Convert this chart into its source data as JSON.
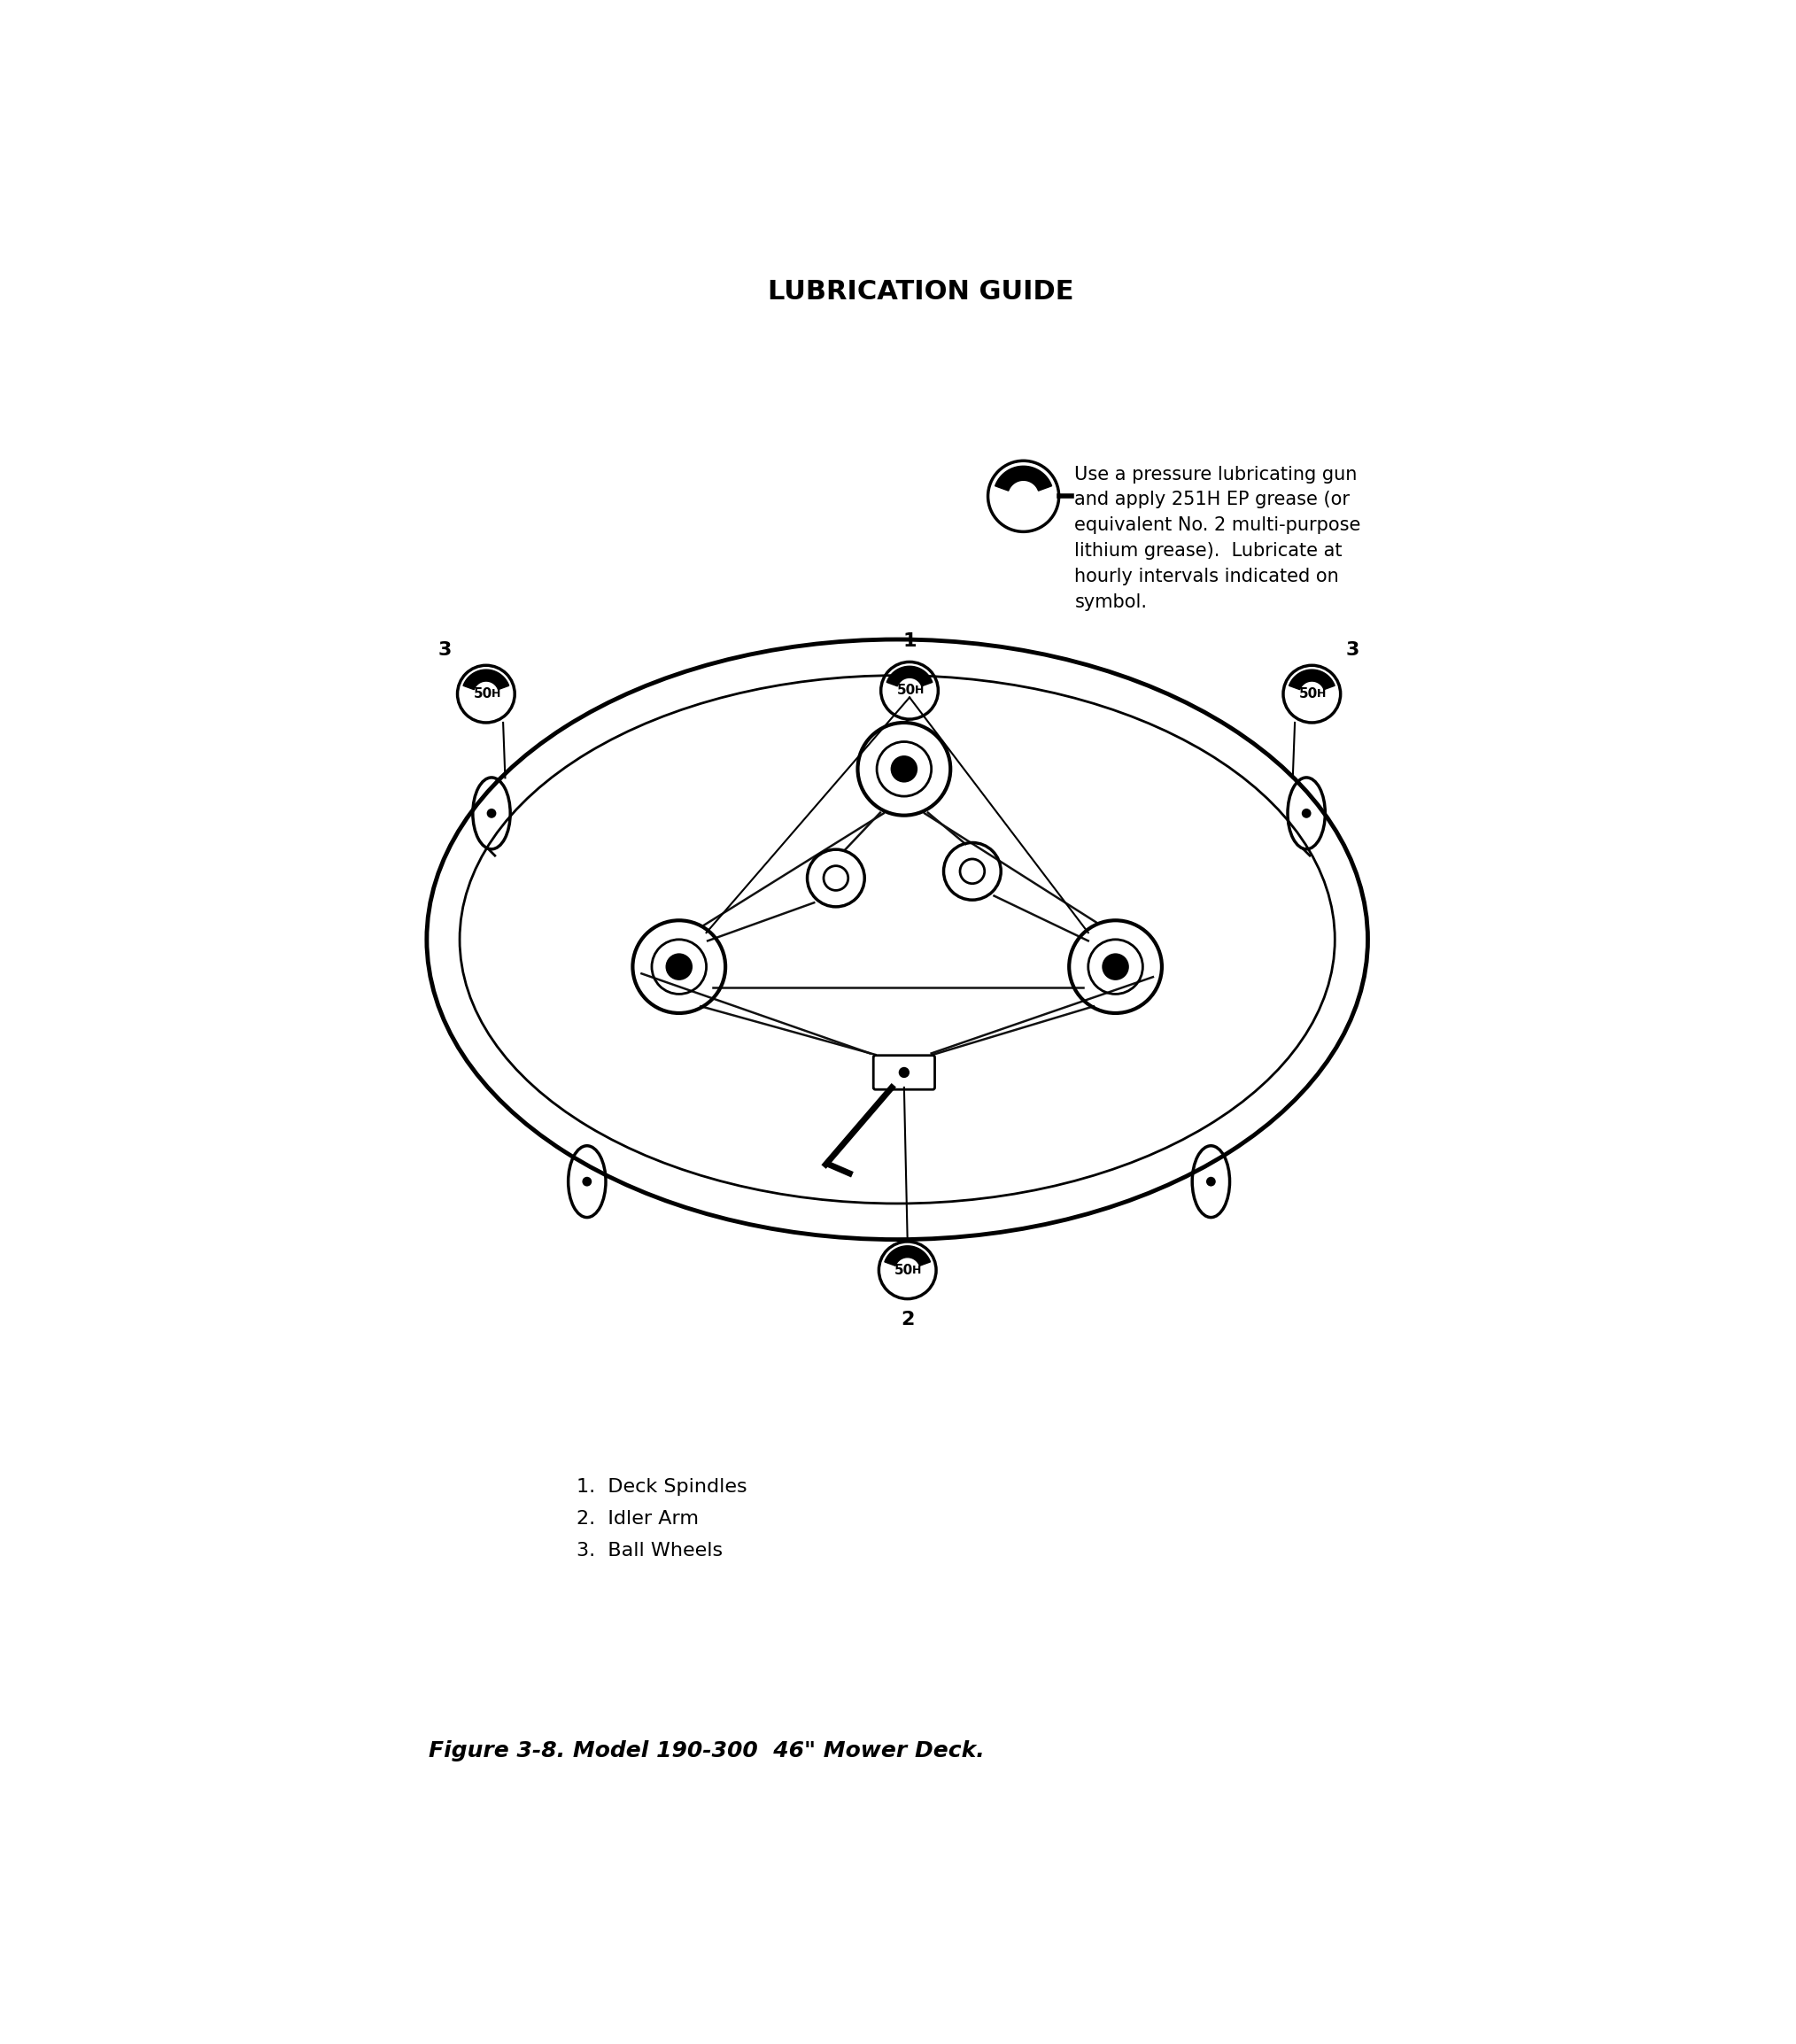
{
  "title": "LUBRICATION GUIDE",
  "figure_caption": "Figure 3-8. Model 190-300  46\" Mower Deck.",
  "legend_text": "Use a pressure lubricating gun\nand apply 251H EP grease (or\nequivalent No. 2 multi-purpose\nlithium grease).  Lubricate at\nhourly intervals indicated on\nsymbol.",
  "items_text": "1.  Deck Spindles\n2.  Idler Arm\n3.  Ball Wheels",
  "bg_color": "#ffffff",
  "line_color": "#000000",
  "title_fontsize": 22,
  "caption_fontsize": 18,
  "legend_fontsize": 15,
  "items_fontsize": 16
}
